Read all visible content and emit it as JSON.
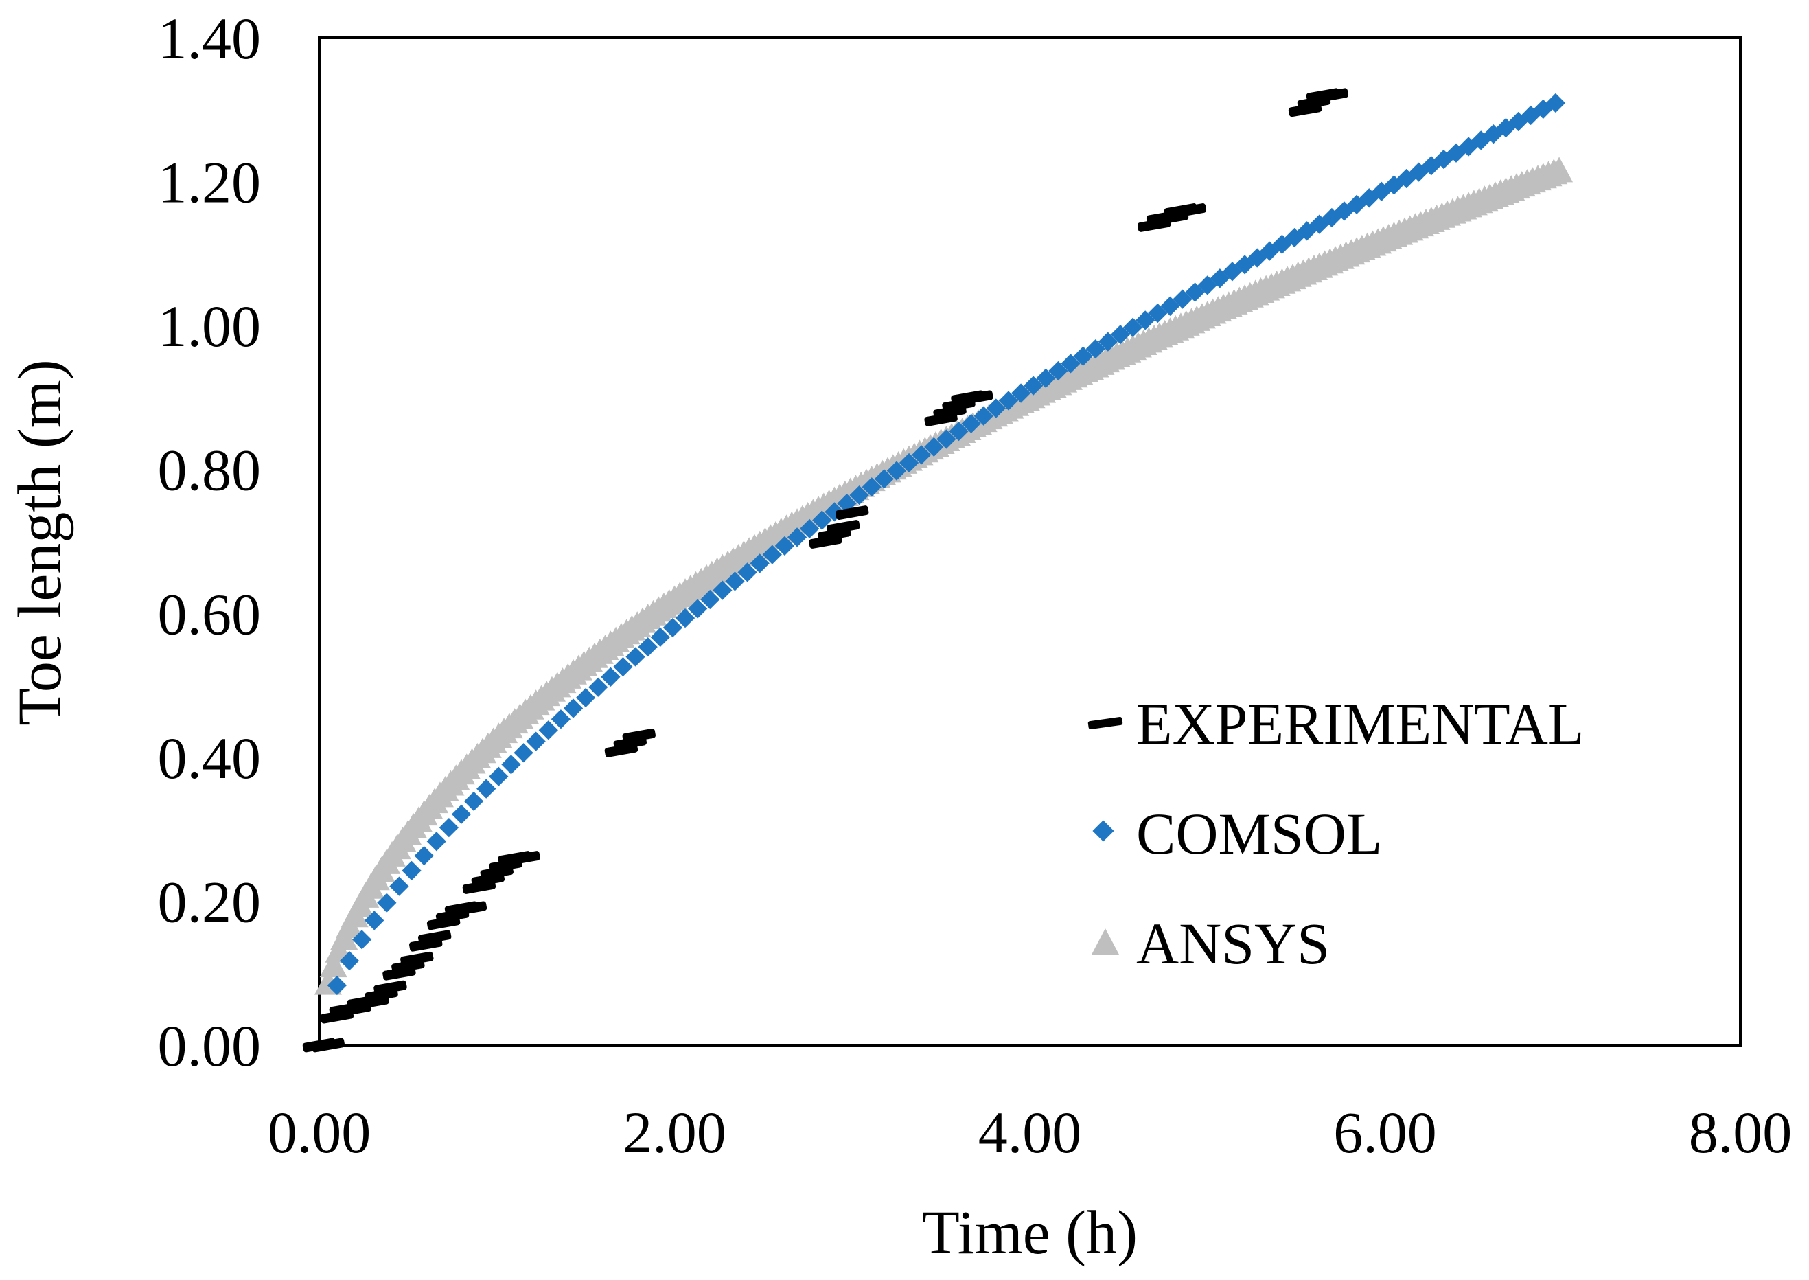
{
  "chart_data": {
    "type": "scatter",
    "title": "",
    "xlabel": "Time (h)",
    "ylabel": "Toe length (m)",
    "xlim": [
      0,
      8
    ],
    "ylim": [
      0,
      1.4
    ],
    "x_ticks": [
      0,
      2,
      4,
      6,
      8
    ],
    "y_ticks": [
      0,
      0.2,
      0.4,
      0.6,
      0.8,
      1.0,
      1.2,
      1.4
    ],
    "x_tick_labels": [
      "0.00",
      "2.00",
      "4.00",
      "6.00",
      "8.00"
    ],
    "y_tick_labels": [
      "0.00",
      "0.20",
      "0.40",
      "0.60",
      "0.80",
      "1.00",
      "1.20",
      "1.40"
    ],
    "grid": false,
    "legend_position": "bottom-right",
    "series": [
      {
        "name": "EXPERIMENTAL",
        "marker": "dash",
        "color": "#000000",
        "x": [
          0.0,
          0.05,
          0.1,
          0.15,
          0.2,
          0.25,
          0.3,
          0.35,
          0.4,
          0.45,
          0.5,
          0.55,
          0.6,
          0.65,
          0.7,
          0.75,
          0.8,
          0.85,
          0.9,
          0.95,
          1.0,
          1.05,
          1.1,
          1.15,
          1.7,
          1.75,
          1.8,
          2.85,
          2.9,
          2.95,
          3.0,
          3.5,
          3.55,
          3.6,
          3.65,
          3.7,
          4.7,
          4.75,
          4.8,
          4.85,
          4.9,
          5.55,
          5.6,
          5.65,
          5.7
        ],
        "y": [
          0.0,
          0.0,
          0.04,
          0.05,
          0.05,
          0.06,
          0.06,
          0.07,
          0.08,
          0.1,
          0.11,
          0.12,
          0.14,
          0.15,
          0.17,
          0.18,
          0.19,
          0.19,
          0.22,
          0.23,
          0.24,
          0.25,
          0.26,
          0.26,
          0.41,
          0.42,
          0.43,
          0.7,
          0.71,
          0.72,
          0.74,
          0.87,
          0.88,
          0.89,
          0.9,
          0.9,
          1.14,
          1.15,
          1.15,
          1.16,
          1.16,
          1.3,
          1.31,
          1.32,
          1.32
        ]
      },
      {
        "name": "COMSOL",
        "marker": "diamond",
        "color": "#1f77c4",
        "model": "power",
        "coefficient": 0.371,
        "exponent": 0.65,
        "t_start": 0.1,
        "t_end": 7.0,
        "t_step": 0.07
      },
      {
        "name": "ANSYS",
        "marker": "triangle",
        "color": "#bfbfbf",
        "model": "power",
        "coefficient": 0.425,
        "exponent": 0.54,
        "t_start": 0.05,
        "t_end": 7.0,
        "t_step": 0.03
      }
    ]
  }
}
